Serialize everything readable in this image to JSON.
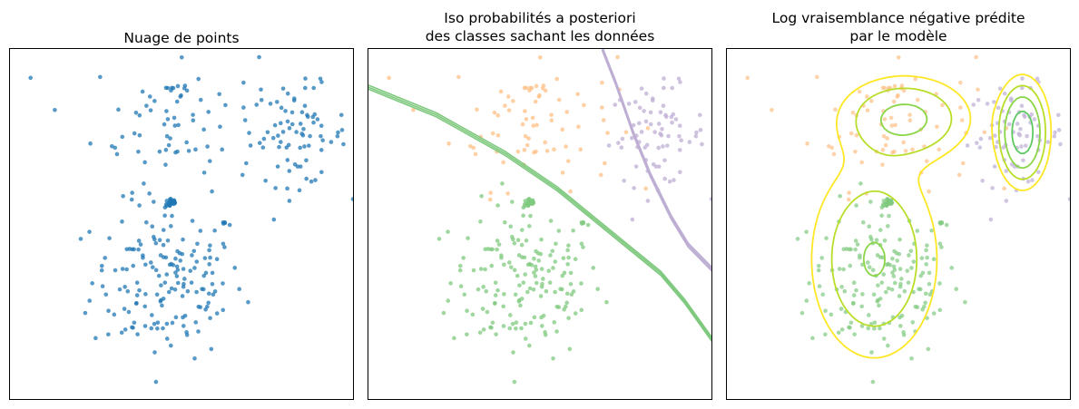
{
  "chart_data": [
    {
      "type": "scatter",
      "title": "Nuage de points",
      "xlabel": "",
      "ylabel": "",
      "xlim": [
        0,
        100
      ],
      "ylim": [
        0,
        100
      ],
      "ticks": false,
      "point_color": "#1f77b4",
      "clusters": [
        {
          "cx": 46,
          "cy": 34,
          "sx": 11,
          "sy": 11,
          "n": 170
        },
        {
          "cx": 48,
          "cy": 80,
          "sx": 12,
          "sy": 10,
          "n": 80
        },
        {
          "cx": 84,
          "cy": 75,
          "sx": 7,
          "sy": 7,
          "n": 75
        },
        {
          "cx": 47,
          "cy": 56,
          "sx": 0.9,
          "sy": 0.7,
          "n": 25
        }
      ]
    },
    {
      "type": "scatter",
      "title": "Iso probabilités a posteriori\ndes classes sachant les données",
      "xlabel": "",
      "ylabel": "",
      "xlim": [
        0,
        100
      ],
      "ylim": [
        0,
        100
      ],
      "ticks": false,
      "class_colors": [
        "#7fc97f",
        "#fdc086",
        "#beaed4"
      ],
      "clusters": [
        {
          "cx": 46,
          "cy": 34,
          "sx": 11,
          "sy": 11,
          "n": 170,
          "cls": 0
        },
        {
          "cx": 48,
          "cy": 80,
          "sx": 12,
          "sy": 10,
          "n": 80,
          "cls": 1
        },
        {
          "cx": 84,
          "cy": 75,
          "sx": 7,
          "sy": 7,
          "n": 75,
          "cls": 2
        },
        {
          "cx": 47,
          "cy": 56,
          "sx": 0.9,
          "sy": 0.7,
          "n": 25,
          "cls": 0
        }
      ],
      "iso_lines": [
        {
          "cls": 0,
          "color": "#7fc97f",
          "points": [
            [
              0,
              89
            ],
            [
              20,
              81
            ],
            [
              40,
              70
            ],
            [
              55,
              60
            ],
            [
              65,
              52
            ],
            [
              75,
              44
            ],
            [
              85,
              36
            ],
            [
              92,
              28
            ],
            [
              100,
              17
            ]
          ]
        },
        {
          "cls": 2,
          "color": "#beaed4",
          "points": [
            [
              68,
              100
            ],
            [
              72,
              90
            ],
            [
              77,
              76
            ],
            [
              82,
              64
            ],
            [
              88,
              52
            ],
            [
              93,
              44
            ],
            [
              100,
              37
            ]
          ]
        }
      ]
    },
    {
      "type": "contour",
      "title": "Log vraisemblance négative prédite\npar le modèle",
      "xlabel": "",
      "ylabel": "",
      "xlim": [
        0,
        100
      ],
      "ylim": [
        0,
        100
      ],
      "ticks": false,
      "class_colors": [
        "#7fc97f",
        "#fdc086",
        "#beaed4"
      ],
      "contour_colors": [
        "#21918c",
        "#22978a",
        "#26a883",
        "#3bb778",
        "#5ec962",
        "#8ad646",
        "#b8de29",
        "#fde725"
      ],
      "components": [
        {
          "cx": 43,
          "cy": 40,
          "sx": 11,
          "sy": 17,
          "w": 0.55
        },
        {
          "cx": 52,
          "cy": 80,
          "sx": 11,
          "sy": 7,
          "w": 0.25
        },
        {
          "cx": 86,
          "cy": 76,
          "sx": 4,
          "sy": 8,
          "w": 0.2
        }
      ],
      "levels": [
        0.003,
        0.0022,
        0.0016,
        0.0011,
        0.00075,
        0.00045,
        0.00025,
        0.00012
      ]
    }
  ]
}
